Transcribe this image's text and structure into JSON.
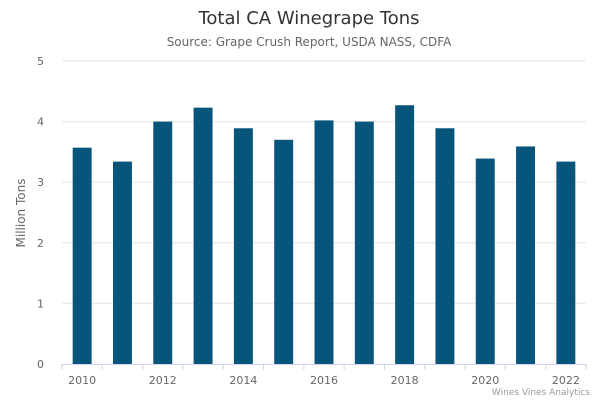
{
  "chart_data": {
    "type": "bar",
    "title": "Total CA Winegrape Tons",
    "subtitle": "Source: Grape Crush Report, USDA NASS, CDFA",
    "ylabel": "Million Tons",
    "xlabel": "",
    "categories": [
      "2010",
      "2011",
      "2012",
      "2013",
      "2014",
      "2015",
      "2016",
      "2017",
      "2018",
      "2019",
      "2020",
      "2021",
      "2022"
    ],
    "values": [
      3.57,
      3.34,
      4.0,
      4.23,
      3.89,
      3.7,
      4.02,
      4.0,
      4.27,
      3.89,
      3.39,
      3.59,
      3.34
    ],
    "ylim": [
      0,
      5
    ],
    "yticks": [
      0,
      1,
      2,
      3,
      4,
      5
    ],
    "xtick_labels": [
      "2010",
      "2012",
      "2014",
      "2016",
      "2018",
      "2020",
      "2022"
    ],
    "grid": true,
    "legend": "none",
    "bar_color": "#07557A",
    "credit": "Wines Vines Analytics"
  }
}
